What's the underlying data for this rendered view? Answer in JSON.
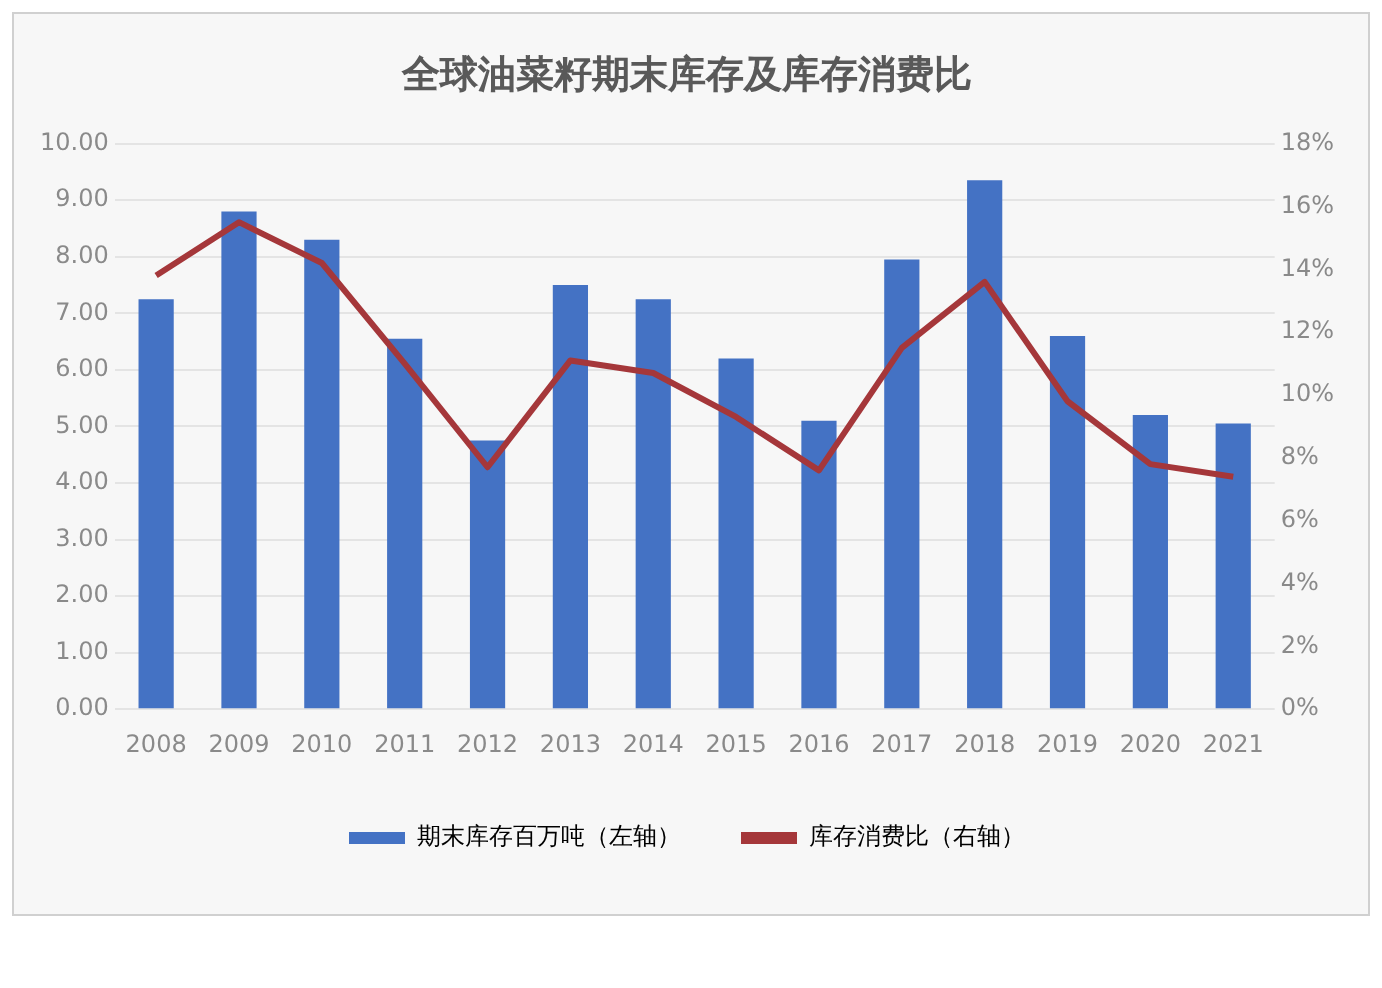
{
  "chart_data": {
    "type": "bar",
    "title": "全球油菜籽期末库存及库存消费比",
    "categories": [
      "2008",
      "2009",
      "2010",
      "2011",
      "2012",
      "2013",
      "2014",
      "2015",
      "2016",
      "2017",
      "2018",
      "2019",
      "2020",
      "2021"
    ],
    "series": [
      {
        "name": "期末库存百万吨（左轴）",
        "color": "#4472c4",
        "values": [
          7.25,
          8.8,
          8.3,
          6.55,
          4.75,
          7.5,
          7.25,
          6.2,
          5.1,
          7.95,
          9.35,
          6.6,
          5.2,
          5.05
        ]
      },
      {
        "name": "库存消费比（右轴）",
        "type": "line",
        "axis": "y2",
        "color": "#a5373a",
        "values": [
          13.8,
          15.5,
          14.2,
          11,
          7.7,
          11.1,
          10.7,
          9.3,
          7.6,
          11.5,
          13.6,
          9.8,
          7.8,
          7.4
        ]
      }
    ],
    "ylim": [
      0,
      10
    ],
    "yticks": [
      {
        "value": 0,
        "label": "0.00"
      },
      {
        "value": 1,
        "label": "1.00"
      },
      {
        "value": 2,
        "label": "2.00"
      },
      {
        "value": 3,
        "label": "3.00"
      },
      {
        "value": 4,
        "label": "4.00"
      },
      {
        "value": 5,
        "label": "5.00"
      },
      {
        "value": 6,
        "label": "6.00"
      },
      {
        "value": 7,
        "label": "7.00"
      },
      {
        "value": 8,
        "label": "8.00"
      },
      {
        "value": 9,
        "label": "9.00"
      },
      {
        "value": 10,
        "label": "10.00"
      }
    ],
    "y2lim": [
      0,
      18
    ],
    "y2ticks": [
      {
        "value": 0,
        "label": "0%"
      },
      {
        "value": 2,
        "label": "2%"
      },
      {
        "value": 4,
        "label": "4%"
      },
      {
        "value": 6,
        "label": "6%"
      },
      {
        "value": 8,
        "label": "8%"
      },
      {
        "value": 10,
        "label": "10%"
      },
      {
        "value": 12,
        "label": "12%"
      },
      {
        "value": 14,
        "label": "14%"
      },
      {
        "value": 16,
        "label": "16%"
      },
      {
        "value": 18,
        "label": "18%"
      }
    ],
    "grid": "y",
    "legend": "bottom",
    "marker": "none",
    "line_style": "solid"
  }
}
